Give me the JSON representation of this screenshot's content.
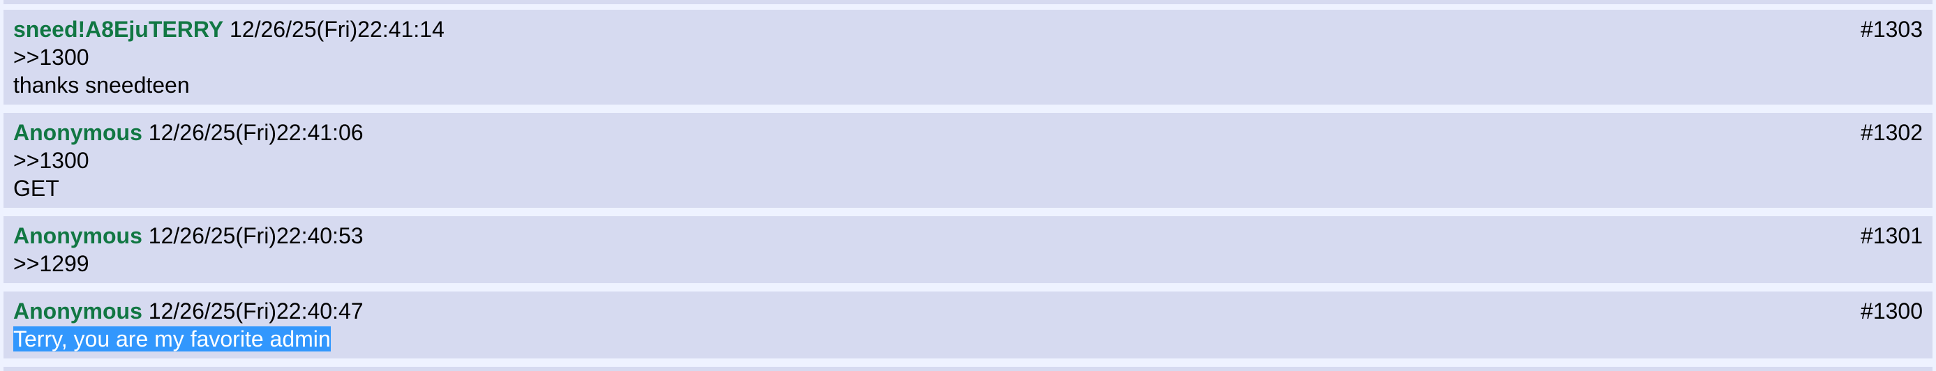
{
  "page": {
    "background_color": "#EEF2FF",
    "post_background_color": "#D6DAF0",
    "name_color": "#117743",
    "text_color": "#000000",
    "selection_background_color": "#3297FD",
    "selection_text_color": "#FFFFFF"
  },
  "posts": [
    {
      "name": "sneed!A8EjuTERRY",
      "timestamp": "12/26/25(Fri)22:41:14",
      "number": "#1303",
      "lines": [
        ">>1300",
        "thanks sneedteen"
      ]
    },
    {
      "name": "Anonymous",
      "timestamp": "12/26/25(Fri)22:41:06",
      "number": "#1302",
      "lines": [
        ">>1300",
        "GET"
      ]
    },
    {
      "name": "Anonymous",
      "timestamp": "12/26/25(Fri)22:40:53",
      "number": "#1301",
      "lines": [
        ">>1299"
      ]
    },
    {
      "name": "Anonymous",
      "timestamp": "12/26/25(Fri)22:40:47",
      "number": "#1300",
      "lines": [
        "Terry, you are my favorite admin"
      ],
      "selected_line_index": 0
    }
  ]
}
